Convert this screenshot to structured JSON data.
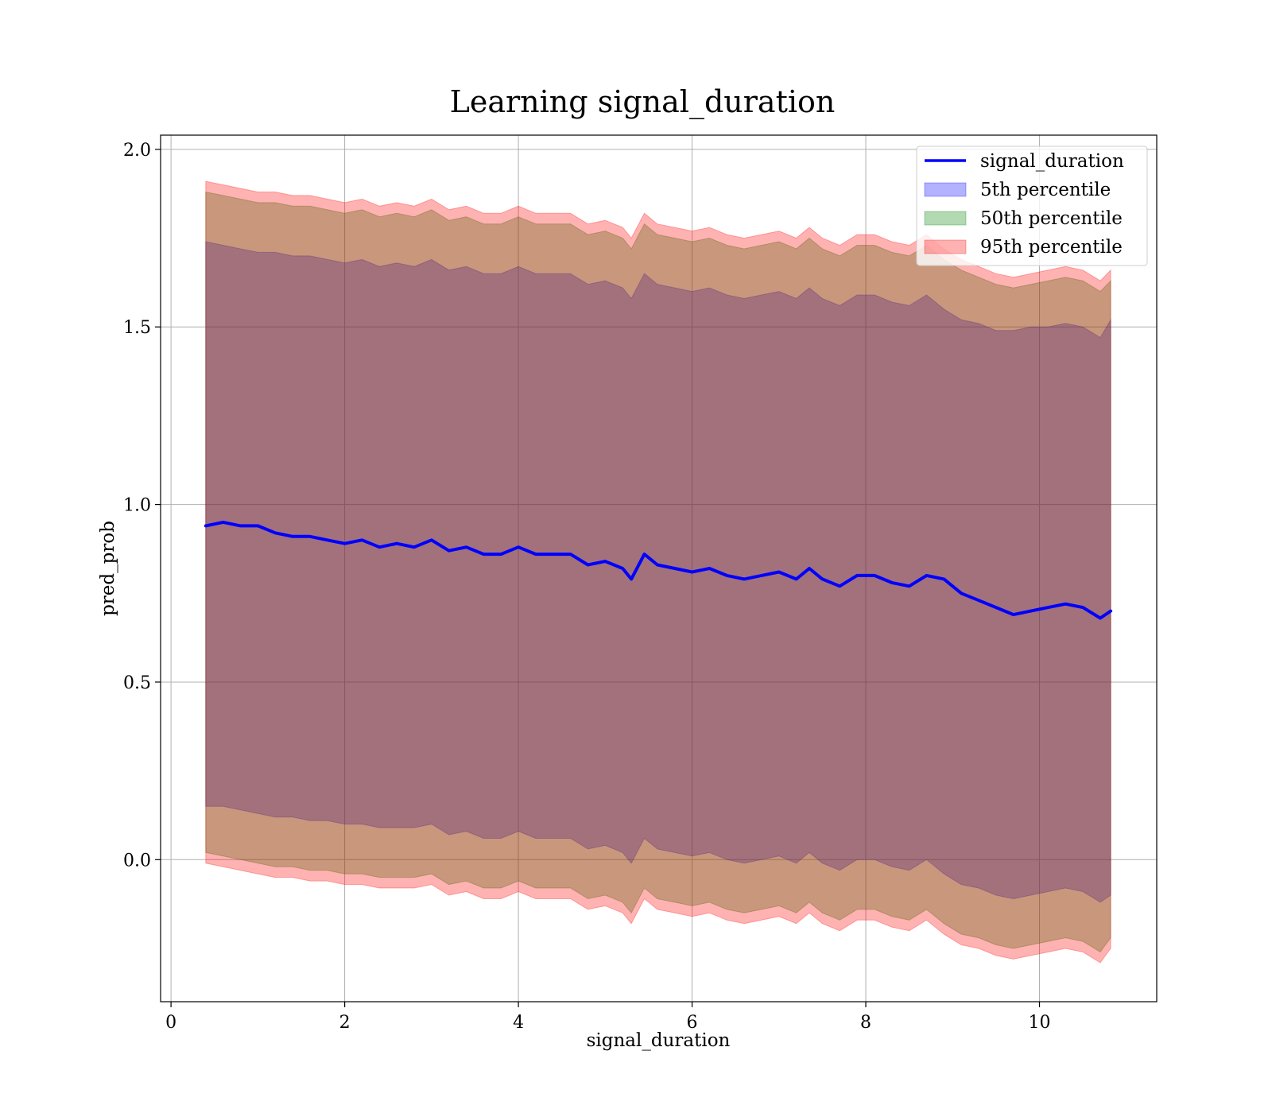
{
  "chart_data": {
    "type": "area",
    "title": "Learning signal_duration",
    "xlabel": "signal_duration",
    "ylabel": "pred_prob",
    "xlim": [
      -0.12,
      11.35
    ],
    "ylim": [
      -0.4,
      2.04
    ],
    "xticks": [
      0,
      2,
      4,
      6,
      8,
      10
    ],
    "xtick_labels": [
      "0",
      "2",
      "4",
      "6",
      "8",
      "10"
    ],
    "yticks": [
      0.0,
      0.5,
      1.0,
      1.5,
      2.0
    ],
    "ytick_labels": [
      "0.0",
      "0.5",
      "1.0",
      "1.5",
      "2.0"
    ],
    "grid": true,
    "legend_position": "top-right",
    "legend": [
      "signal_duration",
      "5th percentile",
      "50th percentile",
      "95th percentile"
    ],
    "x": [
      0.4,
      0.6,
      0.8,
      1.0,
      1.2,
      1.4,
      1.6,
      1.8,
      2.0,
      2.2,
      2.4,
      2.6,
      2.8,
      3.0,
      3.2,
      3.4,
      3.6,
      3.8,
      4.0,
      4.2,
      4.4,
      4.6,
      4.8,
      5.0,
      5.2,
      5.3,
      5.45,
      5.6,
      5.8,
      6.0,
      6.2,
      6.4,
      6.6,
      6.8,
      7.0,
      7.2,
      7.35,
      7.5,
      7.7,
      7.9,
      8.1,
      8.3,
      8.5,
      8.7,
      8.9,
      9.1,
      9.3,
      9.5,
      9.7,
      9.9,
      10.1,
      10.3,
      10.5,
      10.7,
      10.82
    ],
    "series": [
      {
        "name": "signal_duration",
        "color": "#0000ff",
        "values": [
          0.94,
          0.95,
          0.94,
          0.94,
          0.92,
          0.91,
          0.91,
          0.9,
          0.89,
          0.9,
          0.88,
          0.89,
          0.88,
          0.9,
          0.87,
          0.88,
          0.86,
          0.86,
          0.88,
          0.86,
          0.86,
          0.86,
          0.83,
          0.84,
          0.82,
          0.79,
          0.86,
          0.83,
          0.82,
          0.81,
          0.82,
          0.8,
          0.79,
          0.8,
          0.81,
          0.79,
          0.82,
          0.79,
          0.77,
          0.8,
          0.8,
          0.78,
          0.77,
          0.8,
          0.79,
          0.75,
          0.73,
          0.71,
          0.69,
          0.7,
          0.71,
          0.72,
          0.71,
          0.68,
          0.7
        ]
      },
      {
        "name": "5th percentile",
        "color": "#0000ff",
        "opacity": 0.3,
        "upper": [
          1.74,
          1.73,
          1.72,
          1.71,
          1.71,
          1.7,
          1.7,
          1.69,
          1.68,
          1.69,
          1.67,
          1.68,
          1.67,
          1.69,
          1.66,
          1.67,
          1.65,
          1.65,
          1.67,
          1.65,
          1.65,
          1.65,
          1.62,
          1.63,
          1.61,
          1.58,
          1.65,
          1.62,
          1.61,
          1.6,
          1.61,
          1.59,
          1.58,
          1.59,
          1.6,
          1.58,
          1.61,
          1.58,
          1.56,
          1.59,
          1.59,
          1.57,
          1.56,
          1.59,
          1.55,
          1.52,
          1.51,
          1.49,
          1.49,
          1.5,
          1.5,
          1.51,
          1.5,
          1.47,
          1.52
        ],
        "lower": [
          0.15,
          0.15,
          0.14,
          0.13,
          0.12,
          0.12,
          0.11,
          0.11,
          0.1,
          0.1,
          0.09,
          0.09,
          0.09,
          0.1,
          0.07,
          0.08,
          0.06,
          0.06,
          0.08,
          0.06,
          0.06,
          0.06,
          0.03,
          0.04,
          0.02,
          -0.01,
          0.06,
          0.03,
          0.02,
          0.01,
          0.02,
          0.0,
          -0.01,
          0.0,
          0.01,
          -0.01,
          0.02,
          -0.01,
          -0.03,
          0.0,
          0.0,
          -0.02,
          -0.03,
          0.0,
          -0.04,
          -0.07,
          -0.08,
          -0.1,
          -0.11,
          -0.1,
          -0.09,
          -0.08,
          -0.09,
          -0.12,
          -0.1
        ]
      },
      {
        "name": "50th percentile",
        "color": "#008000",
        "opacity": 0.3,
        "upper": [
          1.88,
          1.87,
          1.86,
          1.85,
          1.85,
          1.84,
          1.84,
          1.83,
          1.82,
          1.83,
          1.81,
          1.82,
          1.81,
          1.83,
          1.8,
          1.81,
          1.79,
          1.79,
          1.81,
          1.79,
          1.79,
          1.79,
          1.76,
          1.77,
          1.75,
          1.72,
          1.79,
          1.76,
          1.75,
          1.74,
          1.75,
          1.73,
          1.72,
          1.73,
          1.74,
          1.72,
          1.75,
          1.72,
          1.7,
          1.73,
          1.73,
          1.71,
          1.7,
          1.73,
          1.69,
          1.66,
          1.64,
          1.62,
          1.61,
          1.62,
          1.63,
          1.64,
          1.63,
          1.6,
          1.63
        ],
        "lower": [
          0.02,
          0.01,
          0.0,
          -0.01,
          -0.02,
          -0.02,
          -0.03,
          -0.03,
          -0.04,
          -0.04,
          -0.05,
          -0.05,
          -0.05,
          -0.04,
          -0.07,
          -0.06,
          -0.08,
          -0.08,
          -0.06,
          -0.08,
          -0.08,
          -0.08,
          -0.11,
          -0.1,
          -0.12,
          -0.15,
          -0.08,
          -0.11,
          -0.12,
          -0.13,
          -0.12,
          -0.14,
          -0.15,
          -0.14,
          -0.13,
          -0.15,
          -0.12,
          -0.15,
          -0.17,
          -0.14,
          -0.14,
          -0.16,
          -0.17,
          -0.14,
          -0.18,
          -0.21,
          -0.22,
          -0.24,
          -0.25,
          -0.24,
          -0.23,
          -0.22,
          -0.23,
          -0.26,
          -0.22
        ]
      },
      {
        "name": "95th percentile",
        "color": "#ff0000",
        "opacity": 0.3,
        "upper": [
          1.91,
          1.9,
          1.89,
          1.88,
          1.88,
          1.87,
          1.87,
          1.86,
          1.85,
          1.86,
          1.84,
          1.85,
          1.84,
          1.86,
          1.83,
          1.84,
          1.82,
          1.82,
          1.84,
          1.82,
          1.82,
          1.82,
          1.79,
          1.8,
          1.78,
          1.75,
          1.82,
          1.79,
          1.78,
          1.77,
          1.78,
          1.76,
          1.75,
          1.76,
          1.77,
          1.75,
          1.78,
          1.75,
          1.73,
          1.76,
          1.76,
          1.74,
          1.73,
          1.76,
          1.72,
          1.69,
          1.67,
          1.65,
          1.64,
          1.65,
          1.66,
          1.67,
          1.66,
          1.63,
          1.66
        ],
        "lower": [
          -0.01,
          -0.02,
          -0.03,
          -0.04,
          -0.05,
          -0.05,
          -0.06,
          -0.06,
          -0.07,
          -0.07,
          -0.08,
          -0.08,
          -0.08,
          -0.07,
          -0.1,
          -0.09,
          -0.11,
          -0.11,
          -0.09,
          -0.11,
          -0.11,
          -0.11,
          -0.14,
          -0.13,
          -0.15,
          -0.18,
          -0.11,
          -0.14,
          -0.15,
          -0.16,
          -0.15,
          -0.17,
          -0.18,
          -0.17,
          -0.16,
          -0.18,
          -0.15,
          -0.18,
          -0.2,
          -0.17,
          -0.17,
          -0.19,
          -0.2,
          -0.17,
          -0.21,
          -0.24,
          -0.25,
          -0.27,
          -0.28,
          -0.27,
          -0.26,
          -0.25,
          -0.26,
          -0.29,
          -0.25
        ]
      }
    ]
  }
}
